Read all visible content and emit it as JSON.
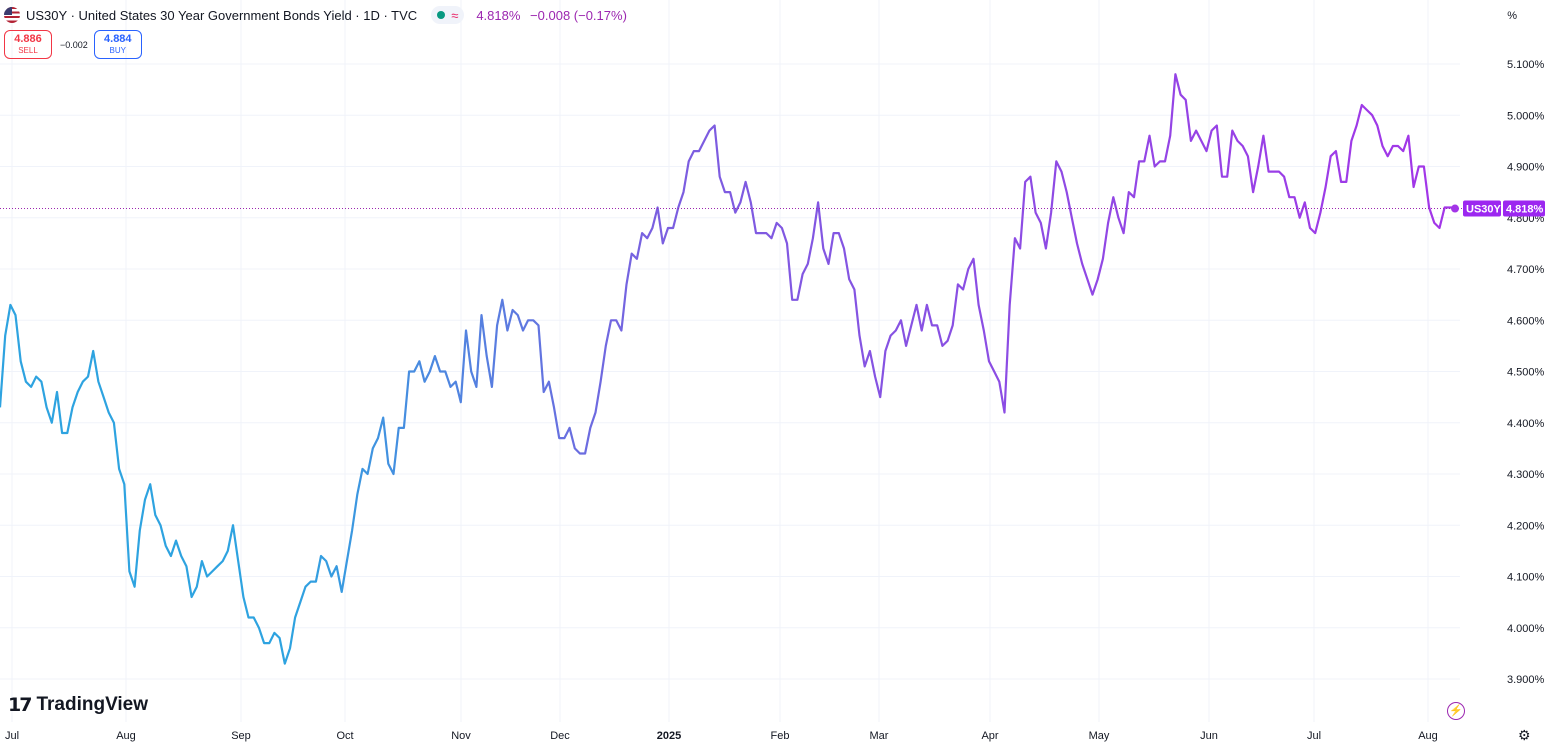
{
  "header": {
    "title": "US30Y · United States 30 Year Government Bonds Yield · 1D · TVC",
    "last": "4.818%",
    "change": "−0.008 (−0.17%)"
  },
  "trade": {
    "sell_price": "4.886",
    "sell_label": "SELL",
    "spread": "−0.002",
    "buy_price": "4.884",
    "buy_label": "BUY"
  },
  "axis_unit": "%",
  "branding": {
    "logo_text": "TradingView"
  },
  "colors": {
    "line_start": "#2ea3e0",
    "line_end": "#a335e8",
    "price_label_bg": "#9c27f0",
    "grid": "#f0f3fa"
  },
  "chart_data": {
    "type": "line",
    "symbol_label": "US30Y",
    "last_value_label": "4.818%",
    "y_ticks": [
      "5.100%",
      "5.000%",
      "4.900%",
      "4.800%",
      "4.700%",
      "4.600%",
      "4.500%",
      "4.400%",
      "4.300%",
      "4.200%",
      "4.100%",
      "4.000%",
      "3.900%"
    ],
    "x_tick_labels": [
      "Jul",
      "Aug",
      "Sep",
      "Oct",
      "Nov",
      "Dec",
      "2025",
      "Feb",
      "Mar",
      "Apr",
      "May",
      "Jun",
      "Jul",
      "Aug"
    ],
    "ylim": [
      3.85,
      5.15
    ],
    "last_value": 4.818,
    "series": [
      {
        "values": [
          4.43,
          4.57,
          4.63,
          4.61,
          4.52,
          4.48,
          4.47,
          4.49,
          4.48,
          4.43,
          4.4,
          4.46,
          4.38,
          4.38,
          4.43,
          4.46,
          4.48,
          4.49,
          4.54,
          4.48,
          4.45,
          4.42,
          4.4,
          4.31,
          4.28,
          4.11,
          4.08,
          4.19,
          4.25,
          4.28,
          4.22,
          4.2,
          4.16,
          4.14,
          4.17,
          4.14,
          4.12,
          4.06,
          4.08,
          4.13,
          4.1,
          4.11,
          4.12,
          4.13,
          4.15,
          4.2,
          4.13,
          4.06,
          4.02,
          4.02,
          4.0,
          3.97,
          3.97,
          3.99,
          3.98,
          3.93,
          3.96,
          4.02,
          4.05,
          4.08,
          4.09,
          4.09,
          4.14,
          4.13,
          4.1,
          4.12,
          4.07,
          4.13,
          4.19,
          4.26,
          4.31,
          4.3,
          4.35,
          4.37,
          4.41,
          4.32,
          4.3,
          4.39,
          4.39,
          4.5,
          4.5,
          4.52,
          4.48,
          4.5,
          4.53,
          4.5,
          4.5,
          4.47,
          4.48,
          4.44,
          4.58,
          4.5,
          4.47,
          4.61,
          4.53,
          4.47,
          4.59,
          4.64,
          4.58,
          4.62,
          4.61,
          4.58,
          4.6,
          4.6,
          4.59,
          4.46,
          4.48,
          4.43,
          4.37,
          4.37,
          4.39,
          4.35,
          4.34,
          4.34,
          4.39,
          4.42,
          4.48,
          4.55,
          4.6,
          4.6,
          4.58,
          4.67,
          4.73,
          4.72,
          4.77,
          4.76,
          4.78,
          4.82,
          4.75,
          4.78,
          4.78,
          4.82,
          4.85,
          4.91,
          4.93,
          4.93,
          4.95,
          4.97,
          4.98,
          4.88,
          4.85,
          4.85,
          4.81,
          4.83,
          4.87,
          4.83,
          4.77,
          4.77,
          4.77,
          4.76,
          4.79,
          4.78,
          4.75,
          4.64,
          4.64,
          4.69,
          4.71,
          4.76,
          4.83,
          4.74,
          4.71,
          4.77,
          4.77,
          4.74,
          4.68,
          4.66,
          4.57,
          4.51,
          4.54,
          4.49,
          4.45,
          4.54,
          4.57,
          4.58,
          4.6,
          4.55,
          4.59,
          4.63,
          4.58,
          4.63,
          4.59,
          4.59,
          4.55,
          4.56,
          4.59,
          4.67,
          4.66,
          4.7,
          4.72,
          4.63,
          4.58,
          4.52,
          4.5,
          4.48,
          4.42,
          4.63,
          4.76,
          4.74,
          4.87,
          4.88,
          4.81,
          4.79,
          4.74,
          4.81,
          4.91,
          4.89,
          4.85,
          4.8,
          4.75,
          4.71,
          4.68,
          4.65,
          4.68,
          4.72,
          4.79,
          4.84,
          4.8,
          4.77,
          4.85,
          4.84,
          4.91,
          4.91,
          4.96,
          4.9,
          4.91,
          4.91,
          4.96,
          5.08,
          5.04,
          5.03,
          4.95,
          4.97,
          4.95,
          4.93,
          4.97,
          4.98,
          4.88,
          4.88,
          4.97,
          4.95,
          4.94,
          4.92,
          4.85,
          4.9,
          4.96,
          4.89,
          4.89,
          4.89,
          4.88,
          4.84,
          4.84,
          4.8,
          4.83,
          4.78,
          4.77,
          4.81,
          4.86,
          4.92,
          4.93,
          4.87,
          4.87,
          4.95,
          4.98,
          5.02,
          5.01,
          5.0,
          4.98,
          4.94,
          4.92,
          4.94,
          4.94,
          4.93,
          4.96,
          4.86,
          4.9,
          4.9,
          4.82,
          4.79,
          4.78,
          4.82,
          4.82,
          4.82
        ]
      }
    ]
  }
}
